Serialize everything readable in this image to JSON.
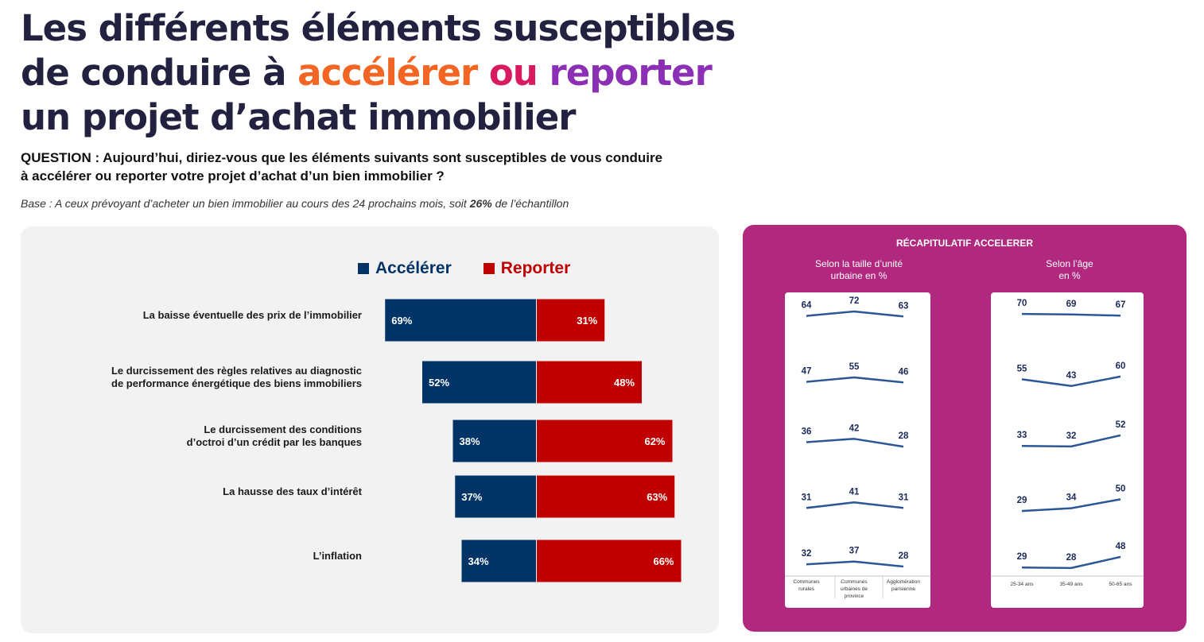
{
  "title": {
    "line1": "Les différents éléments susceptibles",
    "line2_pre": "de conduire à ",
    "line2_accel": "accélérer",
    "line2_ou": " ou ",
    "line2_reporter": "reporter",
    "line3": "un projet d’achat immobilier"
  },
  "question": {
    "line1": "QUESTION : Aujourd’hui, diriez-vous que les éléments suivants sont susceptibles de vous conduire",
    "line2": "à accélérer ou reporter votre projet d’achat d’un bien immobilier ?"
  },
  "base": {
    "pre": "Base : A ceux prévoyant d’acheter un bien immobilier au cours des 24 prochains mois, soit ",
    "bold": "26%",
    "post": " de l’échantillon"
  },
  "colors": {
    "accelerer": "#003366",
    "reporter": "#c00000",
    "line": "#2b5797",
    "panel": "#b0297f"
  },
  "chart_data": [
    {
      "type": "bar",
      "orientation": "horizontal-diverging",
      "categories": [
        [
          "La baisse éventuelle des prix de l’immobilier"
        ],
        [
          "Le durcissement des règles relatives au diagnostic",
          "de performance énergétique des biens immobiliers"
        ],
        [
          "Le durcissement des conditions",
          "d’octroi d’un crédit par les banques"
        ],
        [
          "La hausse des taux d’intérêt"
        ],
        [
          "L’inflation"
        ]
      ],
      "series": [
        {
          "name": "Accélérer",
          "values": [
            69,
            52,
            38,
            37,
            34
          ],
          "labels": [
            "69%",
            "52%",
            "38%",
            "37%",
            "34%"
          ]
        },
        {
          "name": "Reporter",
          "values": [
            31,
            48,
            62,
            63,
            66
          ],
          "labels": [
            "31%",
            "48%",
            "62%",
            "63%",
            "66%"
          ]
        }
      ],
      "unit": "%",
      "legend": "top"
    },
    {
      "type": "line",
      "title": "RÉCAPITULATIF ACCELERER",
      "subtitle": [
        "Selon la taille d’unité",
        "urbaine en %"
      ],
      "categories": [
        [
          "Communes",
          "rurales"
        ],
        [
          "Communes",
          "urbaines de",
          "province"
        ],
        [
          "Agglomération",
          "parisienne"
        ]
      ],
      "series": [
        {
          "values": [
            64,
            72,
            63
          ]
        },
        {
          "values": [
            47,
            55,
            46
          ]
        },
        {
          "values": [
            36,
            42,
            28
          ]
        },
        {
          "values": [
            31,
            41,
            31
          ]
        },
        {
          "values": [
            32,
            37,
            28
          ]
        }
      ]
    },
    {
      "type": "line",
      "subtitle": [
        "Selon l’âge",
        "en %"
      ],
      "categories": [
        [
          "25-34 ans"
        ],
        [
          "35-49 ans"
        ],
        [
          "50-65 ans"
        ]
      ],
      "series": [
        {
          "values": [
            70,
            69,
            67
          ]
        },
        {
          "values": [
            55,
            43,
            60
          ]
        },
        {
          "values": [
            33,
            32,
            52
          ]
        },
        {
          "values": [
            29,
            34,
            50
          ]
        },
        {
          "values": [
            29,
            28,
            48
          ]
        }
      ]
    }
  ]
}
